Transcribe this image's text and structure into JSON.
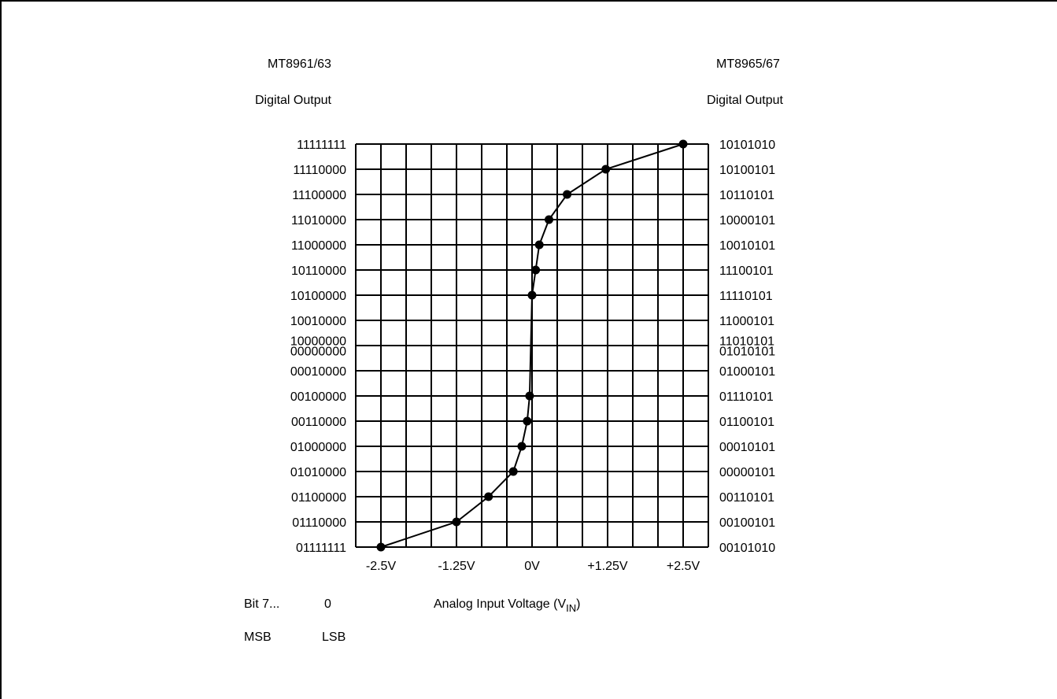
{
  "left_header": {
    "model": "MT8961/63",
    "subtitle": "Digital Output"
  },
  "right_header": {
    "model": "MT8965/67",
    "subtitle": "Digital Output"
  },
  "footer": {
    "bit_label": "Bit 7...",
    "bit_zero": "0",
    "msb": "MSB",
    "lsb": "LSB",
    "xlabel_main": "Analog Input Voltage (V",
    "xlabel_sub": "IN",
    "xlabel_close": ")"
  },
  "chart_data": {
    "type": "line",
    "xlabel": "Analog Input Voltage (VIN)",
    "x_ticks": [
      {
        "label": "-2.5V",
        "value": -2.5
      },
      {
        "label": "-1.25V",
        "value": -1.25
      },
      {
        "label": "0V",
        "value": 0
      },
      {
        "label": "+1.25V",
        "value": 1.25
      },
      {
        "label": "+2.5V",
        "value": 2.5
      }
    ],
    "xlim": [
      -2.5,
      2.5
    ],
    "grid": true,
    "left_code_labels": [
      "11111111",
      "11110000",
      "11100000",
      "11010000",
      "11000000",
      "10110000",
      "10100000",
      "10010000",
      "10000000",
      "00000000",
      "00010000",
      "00100000",
      "00110000",
      "01000000",
      "01010000",
      "01100000",
      "01110000",
      "01111111"
    ],
    "right_code_labels": [
      "10101010",
      "10100101",
      "10110101",
      "10000101",
      "10010101",
      "11100101",
      "11110101",
      "11000101",
      "11010101",
      "01010101",
      "01000101",
      "01110101",
      "01100101",
      "00010101",
      "00000101",
      "00110101",
      "00100101",
      "00101010"
    ],
    "points": [
      {
        "x": -2.5,
        "code": "01111111"
      },
      {
        "x": -1.25,
        "code": "01110000"
      },
      {
        "x": -0.72,
        "code": "01100000"
      },
      {
        "x": -0.31,
        "code": "01010000"
      },
      {
        "x": -0.17,
        "code": "01000000"
      },
      {
        "x": -0.08,
        "code": "00110000"
      },
      {
        "x": -0.04,
        "code": "00100000"
      },
      {
        "x": 0.0,
        "code": "10100000"
      },
      {
        "x": 0.06,
        "code": "10110000"
      },
      {
        "x": 0.12,
        "code": "11000000"
      },
      {
        "x": 0.28,
        "code": "11010000"
      },
      {
        "x": 0.58,
        "code": "11100000"
      },
      {
        "x": 1.22,
        "code": "11110000"
      },
      {
        "x": 2.5,
        "code": "11111111"
      }
    ]
  }
}
